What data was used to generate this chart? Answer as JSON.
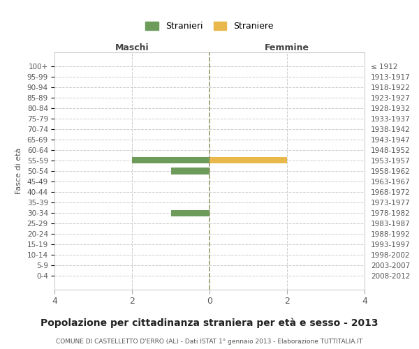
{
  "age_groups": [
    "0-4",
    "5-9",
    "10-14",
    "15-19",
    "20-24",
    "25-29",
    "30-34",
    "35-39",
    "40-44",
    "45-49",
    "50-54",
    "55-59",
    "60-64",
    "65-69",
    "70-74",
    "75-79",
    "80-84",
    "85-89",
    "90-94",
    "95-99",
    "100+"
  ],
  "birth_years": [
    "2008-2012",
    "2003-2007",
    "1998-2002",
    "1993-1997",
    "1988-1992",
    "1983-1987",
    "1978-1982",
    "1973-1977",
    "1968-1972",
    "1963-1967",
    "1958-1962",
    "1953-1957",
    "1948-1952",
    "1943-1947",
    "1938-1942",
    "1933-1937",
    "1928-1932",
    "1923-1927",
    "1918-1922",
    "1913-1917",
    "≤ 1912"
  ],
  "males": [
    0,
    0,
    0,
    0,
    0,
    0,
    1,
    0,
    0,
    0,
    1,
    2,
    0,
    0,
    0,
    0,
    0,
    0,
    0,
    0,
    0
  ],
  "females": [
    0,
    0,
    0,
    0,
    0,
    0,
    0,
    0,
    0,
    0,
    0,
    2,
    0,
    0,
    0,
    0,
    0,
    0,
    0,
    0,
    0
  ],
  "male_color": "#6d9b5a",
  "female_color": "#e8b84b",
  "xlim": 4,
  "title": "Popolazione per cittadinanza straniera per età e sesso - 2013",
  "subtitle": "COMUNE DI CASTELLETTO D'ERRO (AL) - Dati ISTAT 1° gennaio 2013 - Elaborazione TUTTITALIA.IT",
  "xlabel_left": "Maschi",
  "xlabel_right": "Femmine",
  "ylabel_left": "Fasce di età",
  "legend_male": "Stranieri",
  "legend_female": "Straniere",
  "background_color": "#ffffff",
  "grid_color": "#cccccc",
  "center_line_color": "#999966"
}
